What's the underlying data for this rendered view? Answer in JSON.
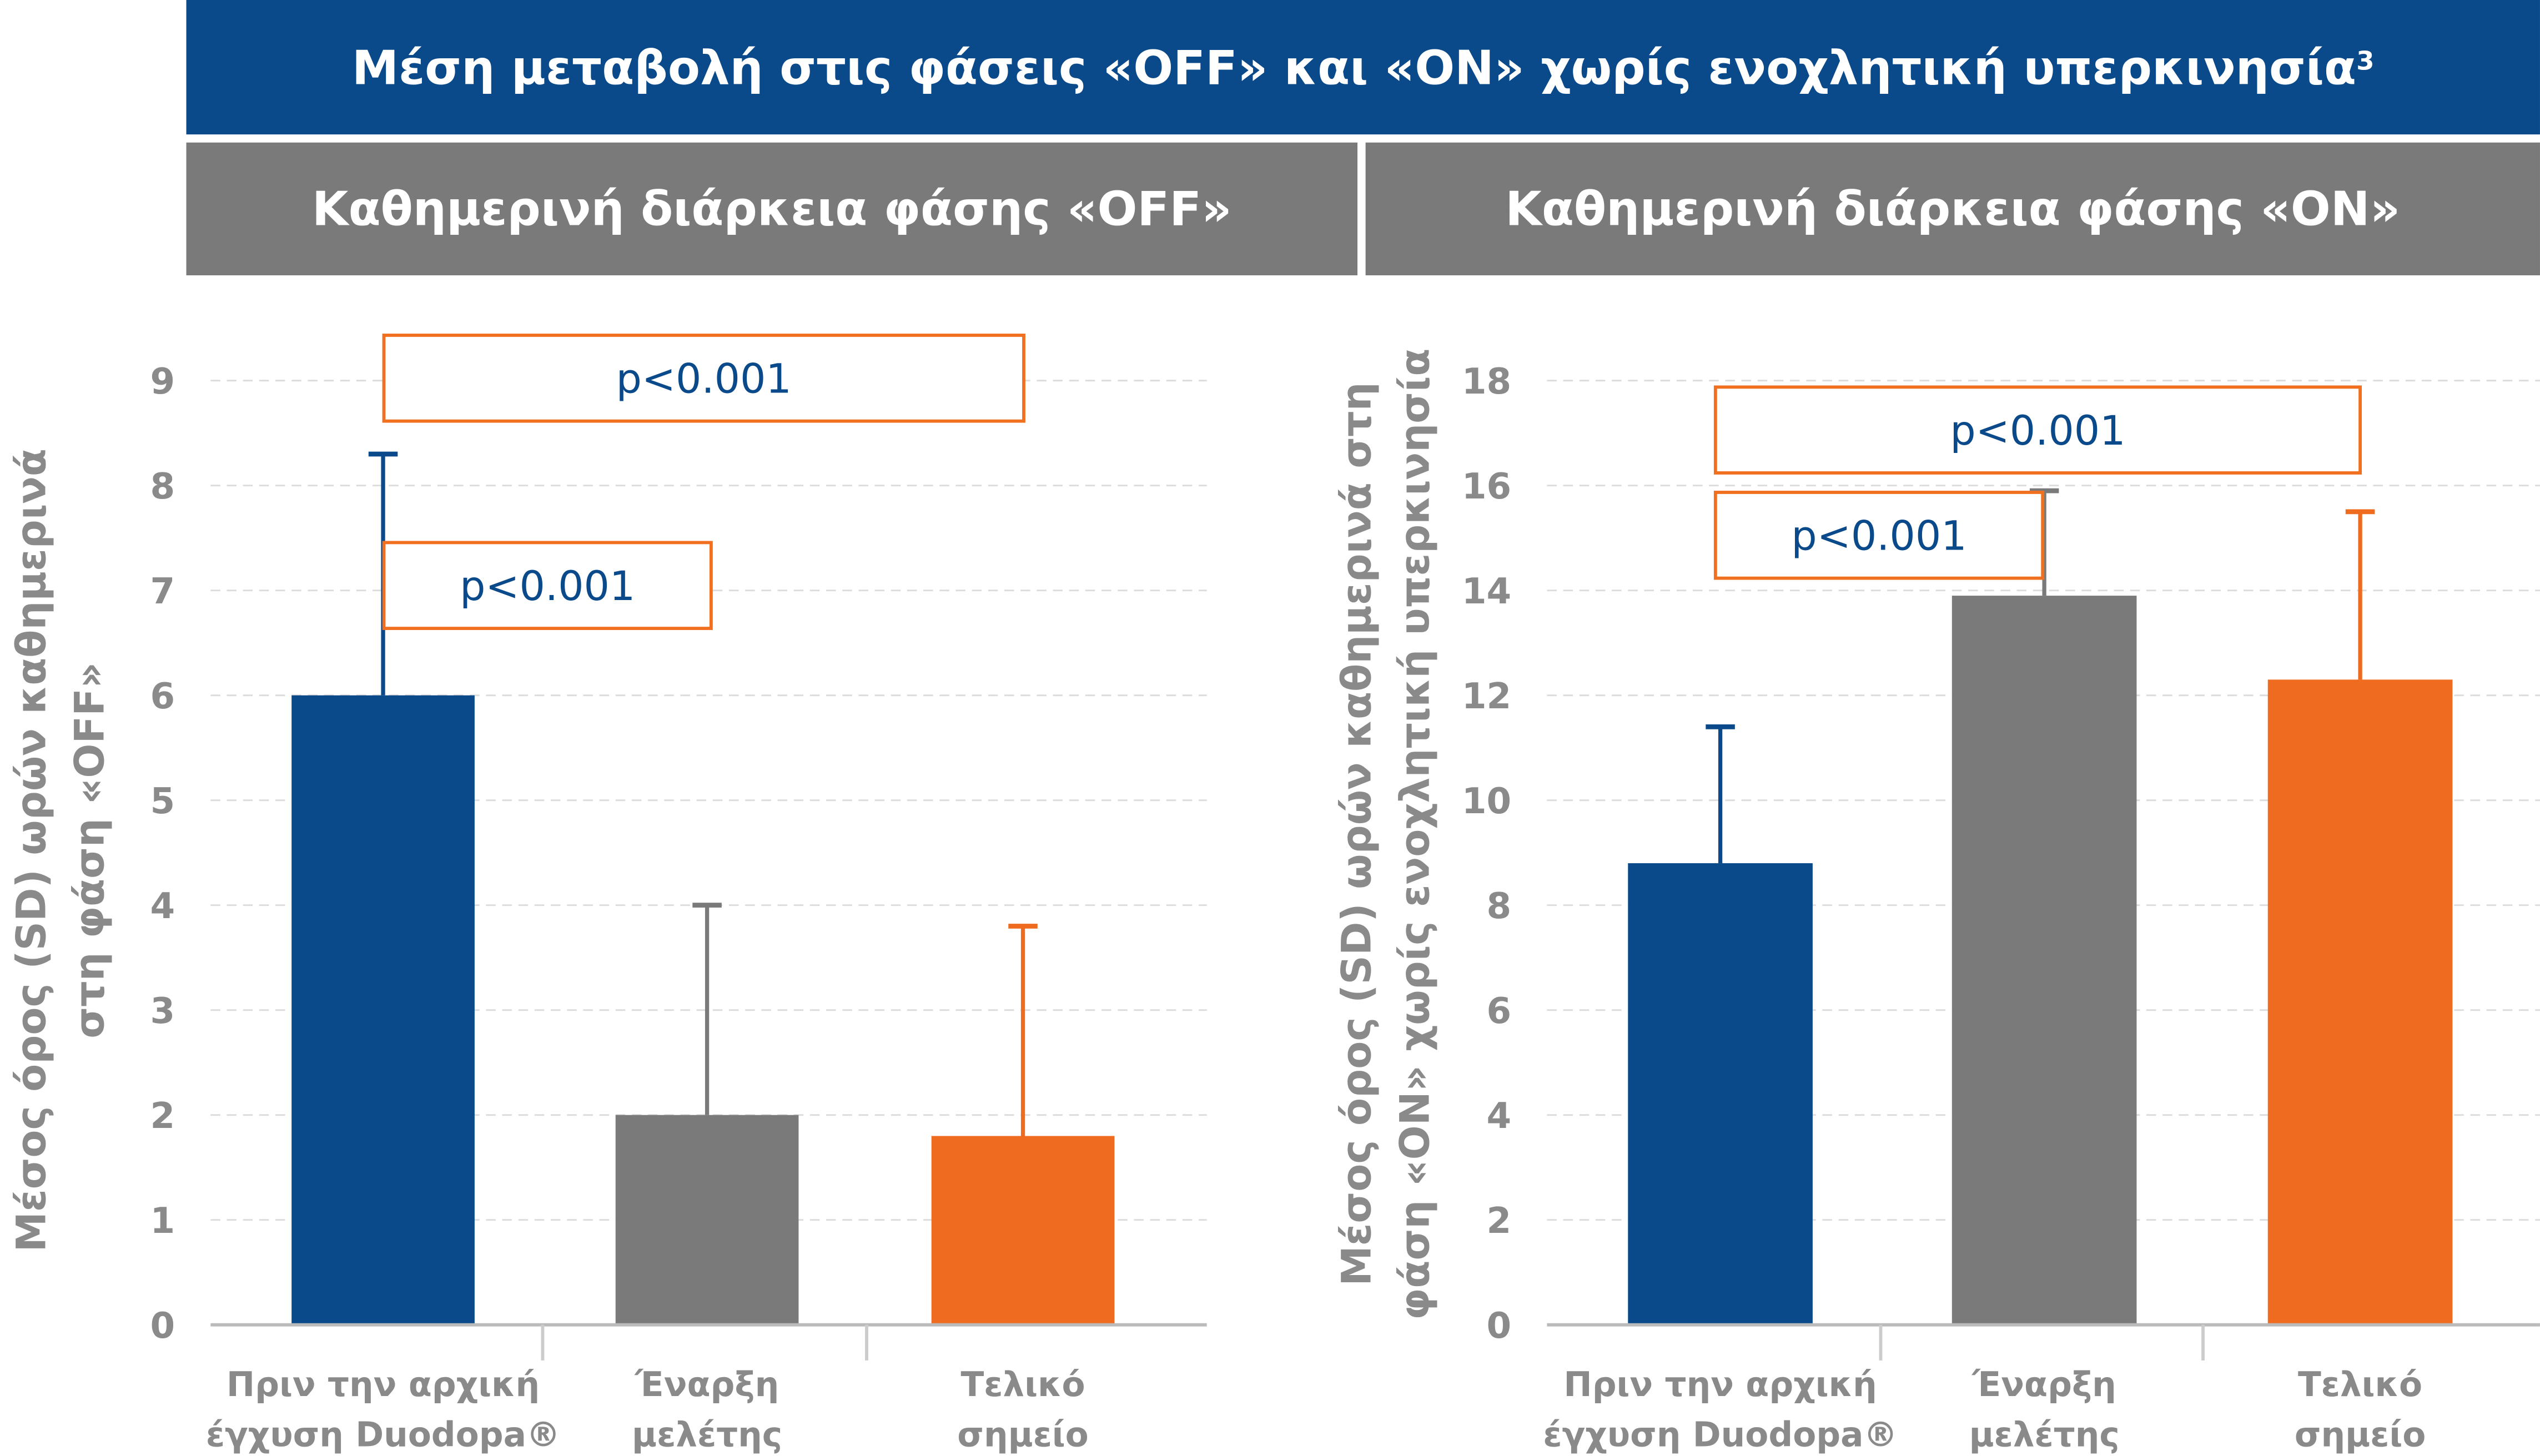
{
  "title": "Μέση μεταβολή στις φάσεις «OFF» και «ON» χωρίς ενοχλητική υπερκινησία",
  "title_sup": "3",
  "colors": {
    "blue": "#0a4a8a",
    "gray": "#7a7a7a",
    "orange": "#ee6b1f",
    "pbox": "#f07020",
    "axis": "#8a8a8a"
  },
  "chart_data": [
    {
      "type": "bar",
      "title": "Καθημερινή διάρκεια φάσης «OFF»",
      "ylabel": [
        "Μέσος όρος (SD) ωρών καθημερινά",
        "στη φάση «OFF»"
      ],
      "ylim": [
        0,
        9
      ],
      "yticks": [
        "0",
        "1",
        "2",
        "3",
        "4",
        "5",
        "6",
        "7",
        "8",
        "9"
      ],
      "grid": true,
      "categories": [
        [
          "Πριν την αρχική",
          "έγχυση Duodopa®"
        ],
        [
          "Έναρξη",
          "μελέτης"
        ],
        [
          "Τελικό",
          "σημείο"
        ]
      ],
      "values": [
        6.0,
        2.0,
        1.8
      ],
      "sd_upper": [
        8.3,
        4.0,
        3.8
      ],
      "bar_colors": [
        "#0a4a8a",
        "#7a7a7a",
        "#ee6b1f"
      ],
      "annotations": [
        {
          "text": "p<0.001",
          "from": 0,
          "to": 2,
          "level": 9
        },
        {
          "text": "p<0.001",
          "from": 0,
          "to": 1,
          "level": 7
        }
      ]
    },
    {
      "type": "bar",
      "title": "Καθημερινή διάρκεια φάσης «ON»",
      "ylabel": [
        "Μέσος όρος (SD) ωρών καθημερινά στη",
        "φάση «ON» χωρίς ενοχλητική υπερκινησία"
      ],
      "ylim": [
        0,
        18
      ],
      "yticks": [
        "0",
        "2",
        "4",
        "6",
        "8",
        "10",
        "12",
        "14",
        "16",
        "18"
      ],
      "grid": true,
      "categories": [
        [
          "Πριν την αρχική",
          "έγχυση Duodopa®"
        ],
        [
          "Έναρξη",
          "μελέτης"
        ],
        [
          "Τελικό",
          "σημείο"
        ]
      ],
      "values": [
        8.8,
        13.9,
        12.3
      ],
      "sd_upper": [
        11.4,
        15.9,
        15.5
      ],
      "bar_colors": [
        "#0a4a8a",
        "#7a7a7a",
        "#ee6b1f"
      ],
      "annotations": [
        {
          "text": "p<0.001",
          "from": 0,
          "to": 2,
          "level": 16
        },
        {
          "text": "p<0.001",
          "from": 0,
          "to": 1,
          "level": 14
        }
      ]
    }
  ]
}
